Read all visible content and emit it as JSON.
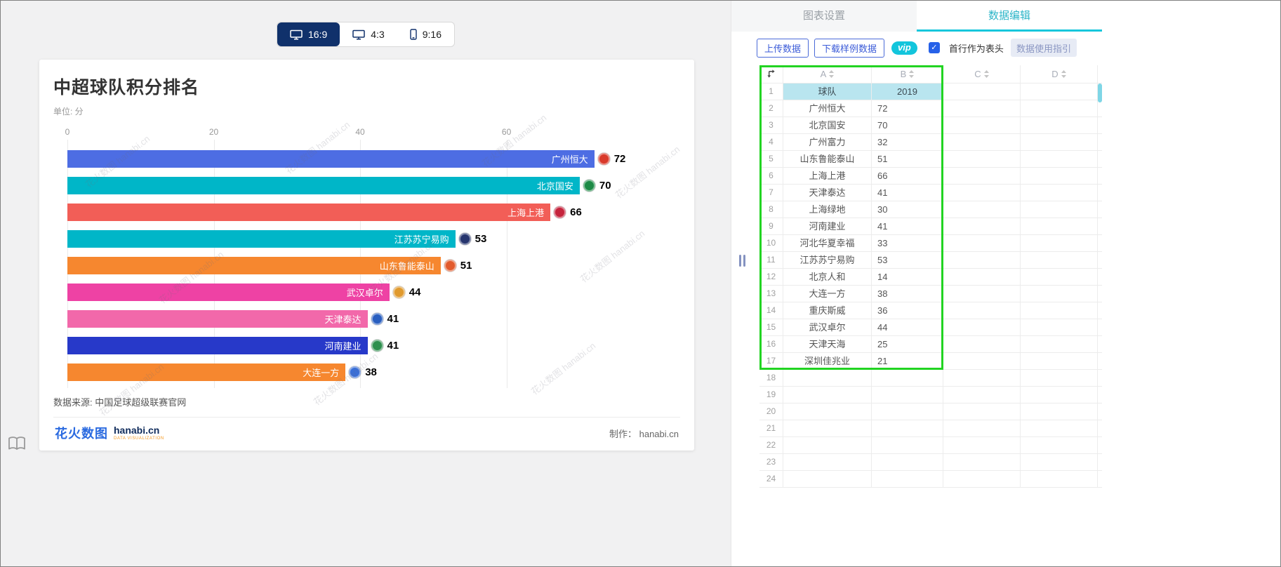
{
  "aspect_toggle": {
    "options": [
      {
        "label": "16:9",
        "selected": true,
        "icon": "monitor-icon"
      },
      {
        "label": "4:3",
        "selected": false,
        "icon": "monitor-icon"
      },
      {
        "label": "9:16",
        "selected": false,
        "icon": "phone-icon"
      }
    ]
  },
  "chart": {
    "title": "中超球队积分排名",
    "unit": "单位: 分",
    "source": "数据来源: 中国足球超级联赛官网",
    "credit": "制作： hanabi.cn",
    "watermark": "花火数图 hanabi.cn",
    "logo": {
      "cn": "花火数图",
      "en": "hanabi.cn",
      "sub": "DATA VISUALIZATION"
    }
  },
  "chart_data": {
    "type": "bar",
    "orientation": "horizontal",
    "title": "中超球队积分排名",
    "unit": "分",
    "categories": [
      "广州恒大",
      "北京国安",
      "上海上港",
      "江苏苏宁易购",
      "山东鲁能泰山",
      "武汉卓尔",
      "天津泰达",
      "河南建业",
      "大连一方"
    ],
    "values": [
      72,
      70,
      66,
      53,
      51,
      44,
      41,
      41,
      38
    ],
    "colors": [
      "#4d6de3",
      "#00b6c8",
      "#f25e57",
      "#00b6c8",
      "#f6872f",
      "#ee42a4",
      "#f268aa",
      "#2739c9",
      "#f6872f"
    ],
    "badge_colors": [
      "#d93a2b",
      "#1d8a46",
      "#c5243c",
      "#27356e",
      "#e25b2d",
      "#e09a2e",
      "#2a5fc0",
      "#2f8f4e",
      "#3a6fd8"
    ],
    "xticks": [
      0,
      20,
      40,
      60
    ],
    "xlim": [
      0,
      82
    ],
    "grid": true,
    "value_labels": true,
    "legend": "none"
  },
  "panel": {
    "tabs": [
      {
        "label": "图表设置",
        "active": false
      },
      {
        "label": "数据编辑",
        "active": true
      }
    ],
    "toolbar": {
      "upload": "上传数据",
      "download_sample": "下载样例数据",
      "vip": "vip",
      "header_checkbox_label": "首行作为表头",
      "header_checkbox_checked": true,
      "guide": "数据使用指引"
    },
    "spreadsheet": {
      "columns": [
        "A",
        "B",
        "C",
        "D"
      ],
      "total_rows": 24,
      "selection_range": "A1:B17",
      "rows": [
        [
          "球队",
          "2019"
        ],
        [
          "广州恒大",
          "72"
        ],
        [
          "北京国安",
          "70"
        ],
        [
          "广州富力",
          "32"
        ],
        [
          "山东鲁能泰山",
          "51"
        ],
        [
          "上海上港",
          "66"
        ],
        [
          "天津泰达",
          "41"
        ],
        [
          "上海绿地",
          "30"
        ],
        [
          "河南建业",
          "41"
        ],
        [
          "河北华夏幸福",
          "33"
        ],
        [
          "江苏苏宁易购",
          "53"
        ],
        [
          "北京人和",
          "14"
        ],
        [
          "大连一方",
          "38"
        ],
        [
          "重庆斯威",
          "36"
        ],
        [
          "武汉卓尔",
          "44"
        ],
        [
          "天津天海",
          "25"
        ],
        [
          "深圳佳兆业",
          "21"
        ]
      ]
    }
  },
  "colors": {
    "accent_cyan": "#17c7dc",
    "selection_green": "#22d422",
    "header_highlight": "#b9e5ef",
    "toggle_navy": "#10316b",
    "button_blue": "#3b5bd8",
    "checkbox_blue": "#2661e8"
  }
}
